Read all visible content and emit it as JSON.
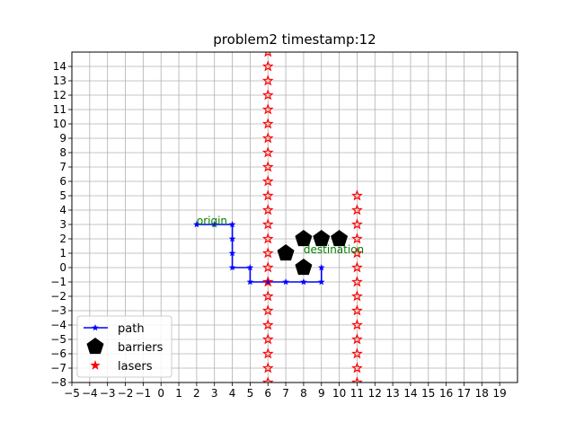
{
  "chart_data": {
    "type": "scatter",
    "title": "problem2 timestamp:12",
    "xlabel": "",
    "ylabel": "",
    "xlim": [
      -5,
      20
    ],
    "ylim": [
      -8,
      15
    ],
    "grid": true,
    "legend_position": "lower-left",
    "xticks": [
      -5,
      -4,
      -3,
      -2,
      -1,
      0,
      1,
      2,
      3,
      4,
      5,
      6,
      7,
      8,
      9,
      10,
      11,
      12,
      13,
      14,
      15,
      16,
      17,
      18,
      19
    ],
    "yticks": [
      -8,
      -7,
      -6,
      -5,
      -4,
      -3,
      -2,
      -1,
      0,
      1,
      2,
      3,
      4,
      5,
      6,
      7,
      8,
      9,
      10,
      11,
      12,
      13,
      14
    ],
    "series": [
      {
        "name": "path",
        "kind": "line-star",
        "color": "#0000ff",
        "x": [
          2,
          3,
          4,
          4,
          4,
          4,
          5,
          5,
          6,
          7,
          8,
          9,
          9
        ],
        "y": [
          3,
          3,
          3,
          2,
          1,
          0,
          0,
          -1,
          -1,
          -1,
          -1,
          -1,
          0
        ]
      },
      {
        "name": "barriers",
        "kind": "pentagon",
        "color": "#000000",
        "x": [
          7,
          8,
          8,
          9,
          10
        ],
        "y": [
          1,
          0,
          2,
          2,
          2
        ]
      },
      {
        "name": "lasers",
        "kind": "star",
        "color": "#ff0000",
        "x": [
          6,
          6,
          6,
          6,
          6,
          6,
          6,
          6,
          6,
          6,
          6,
          6,
          6,
          6,
          6,
          6,
          6,
          6,
          6,
          6,
          6,
          6,
          6,
          6,
          11,
          11,
          11,
          11,
          11,
          11,
          11,
          11,
          11,
          11,
          11,
          11,
          11,
          11
        ],
        "y": [
          -8,
          -7,
          -6,
          -5,
          -4,
          -3,
          -2,
          -1,
          0,
          1,
          2,
          3,
          4,
          5,
          6,
          7,
          8,
          9,
          10,
          11,
          12,
          13,
          14,
          15,
          -8,
          -7,
          -6,
          -5,
          -4,
          -3,
          -2,
          -1,
          0,
          1,
          2,
          3,
          4,
          5
        ]
      }
    ],
    "annotations": [
      {
        "text": "origin",
        "x": 2,
        "y": 3,
        "color": "#008000"
      },
      {
        "text": "destination",
        "x": 8,
        "y": 1,
        "color": "#008000"
      }
    ],
    "legend": [
      "path",
      "barriers",
      "lasers"
    ]
  }
}
